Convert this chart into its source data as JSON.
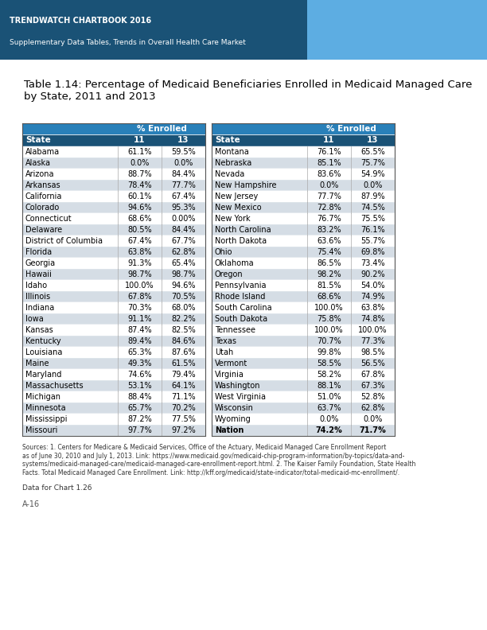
{
  "title_line1": "TRENDWATCH CHARTBOOK 2016",
  "title_line2": "Supplementary Data Tables, Trends in Overall Health Care Market",
  "table_title": "Table 1.14: Percentage of Medicaid Beneficiaries Enrolled in Medicaid Managed Care\nby State, 2011 and 2013",
  "header_bg": "#1a5276",
  "header_text": "#ffffff",
  "subheader_bg": "#2980b9",
  "row_bg_odd": "#ffffff",
  "row_bg_even": "#d5dde5",
  "top_banner_bg": "#1a5276",
  "top_banner_text": "#ffffff",
  "footer_text": "Sources: 1. Centers for Medicare & Medicaid Services, Office of the Actuary, Medicaid Managed Care Enrollment Report\nas of June 30, 2010 and July 1, 2013. Link: https://www.medicaid.gov/medicaid-chip-program-information/by-topics/data-and-\nsystems/medicaid-managed-care/medicaid-managed-care-enrollment-report.html. 2. The Kaiser Family Foundation, State Health\nFacts. Total Medicaid Managed Care Enrollment. Link: http://kff.org/medicaid/state-indicator/total-medicaid-mc-enrollment/.",
  "data_for_chart": "Data for Chart 1.26",
  "page_number": "A-16",
  "left_data": [
    [
      "Alabama",
      "61.1%",
      "59.5%"
    ],
    [
      "Alaska",
      "0.0%",
      "0.0%"
    ],
    [
      "Arizona",
      "88.7%",
      "84.4%"
    ],
    [
      "Arkansas",
      "78.4%",
      "77.7%"
    ],
    [
      "California",
      "60.1%",
      "67.4%"
    ],
    [
      "Colorado",
      "94.6%",
      "95.3%"
    ],
    [
      "Connecticut",
      "68.6%",
      "0.00%"
    ],
    [
      "Delaware",
      "80.5%",
      "84.4%"
    ],
    [
      "District of Columbia",
      "67.4%",
      "67.7%"
    ],
    [
      "Florida",
      "63.8%",
      "62.8%"
    ],
    [
      "Georgia",
      "91.3%",
      "65.4%"
    ],
    [
      "Hawaii",
      "98.7%",
      "98.7%"
    ],
    [
      "Idaho",
      "100.0%",
      "94.6%"
    ],
    [
      "Illinois",
      "67.8%",
      "70.5%"
    ],
    [
      "Indiana",
      "70.3%",
      "68.0%"
    ],
    [
      "Iowa",
      "91.1%",
      "82.2%"
    ],
    [
      "Kansas",
      "87.4%",
      "82.5%"
    ],
    [
      "Kentucky",
      "89.4%",
      "84.6%"
    ],
    [
      "Louisiana",
      "65.3%",
      "87.6%"
    ],
    [
      "Maine",
      "49.3%",
      "61.5%"
    ],
    [
      "Maryland",
      "74.6%",
      "79.4%"
    ],
    [
      "Massachusetts",
      "53.1%",
      "64.1%"
    ],
    [
      "Michigan",
      "88.4%",
      "71.1%"
    ],
    [
      "Minnesota",
      "65.7%",
      "70.2%"
    ],
    [
      "Mississippi",
      "87.2%",
      "77.5%"
    ],
    [
      "Missouri",
      "97.7%",
      "97.2%"
    ]
  ],
  "right_data": [
    [
      "Montana",
      "76.1%",
      "65.5%"
    ],
    [
      "Nebraska",
      "85.1%",
      "75.7%"
    ],
    [
      "Nevada",
      "83.6%",
      "54.9%"
    ],
    [
      "New Hampshire",
      "0.0%",
      "0.0%"
    ],
    [
      "New Jersey",
      "77.7%",
      "87.9%"
    ],
    [
      "New Mexico",
      "72.8%",
      "74.5%"
    ],
    [
      "New York",
      "76.7%",
      "75.5%"
    ],
    [
      "North Carolina",
      "83.2%",
      "76.1%"
    ],
    [
      "North Dakota",
      "63.6%",
      "55.7%"
    ],
    [
      "Ohio",
      "75.4%",
      "69.8%"
    ],
    [
      "Oklahoma",
      "86.5%",
      "73.4%"
    ],
    [
      "Oregon",
      "98.2%",
      "90.2%"
    ],
    [
      "Pennsylvania",
      "81.5%",
      "54.0%"
    ],
    [
      "Rhode Island",
      "68.6%",
      "74.9%"
    ],
    [
      "South Carolina",
      "100.0%",
      "63.8%"
    ],
    [
      "South Dakota",
      "75.8%",
      "74.8%"
    ],
    [
      "Tennessee",
      "100.0%",
      "100.0%"
    ],
    [
      "Texas",
      "70.7%",
      "77.3%"
    ],
    [
      "Utah",
      "99.8%",
      "98.5%"
    ],
    [
      "Vermont",
      "58.5%",
      "56.5%"
    ],
    [
      "Virginia",
      "58.2%",
      "67.8%"
    ],
    [
      "Washington",
      "88.1%",
      "67.3%"
    ],
    [
      "West Virginia",
      "51.0%",
      "52.8%"
    ],
    [
      "Wisconsin",
      "63.7%",
      "62.8%"
    ],
    [
      "Wyoming",
      "0.0%",
      "0.0%"
    ],
    [
      "Nation",
      "74.2%",
      "71.7%"
    ]
  ]
}
